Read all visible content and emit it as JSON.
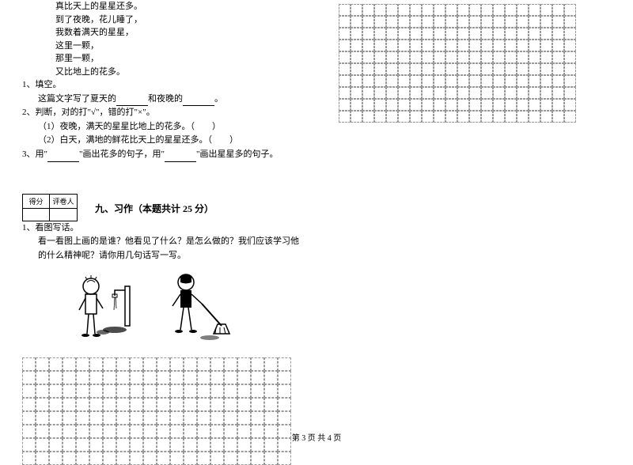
{
  "poem": {
    "line1": "真比天上的星星还多。",
    "line2": "到了夜晚，花儿睡了，",
    "line3": "我数着满天的星星，",
    "line4": "这里一颗，",
    "line5": "那里一颗，",
    "line6": "又比地上的花多。"
  },
  "q1": {
    "num": "1、填空。",
    "text_a": "这篇文字写了夏天的",
    "text_b": "和夜晚的",
    "text_c": "。"
  },
  "q2": {
    "num": "2、判断，对的打\"√\"，错的打\"×\"。",
    "sub1": "（1）夜晚，满天的星星比地上的花多。（　　）",
    "sub2": "（2）白天，满地的鲜花比天上的星星还多。（　　）"
  },
  "q3": {
    "num": "3、用\"",
    "text_a": "\"画出花多的句子，用\"",
    "text_b": "\"画出星星多的句子。"
  },
  "scorebox": {
    "score": "得分",
    "reviewer": "评卷人"
  },
  "section9": {
    "title": "九、习作（本题共计 25 分）"
  },
  "writing": {
    "num": "1、看图写话。",
    "prompt": "看一看图上画的是谁？他看见了什么？是怎么做的？我们应该学习他的什么精神呢？请你用几句话写一写。"
  },
  "footer": {
    "text": "第 3 页  共 4 页"
  },
  "styles": {
    "grid_color": "#999999",
    "text_color": "#000000",
    "bg_color": "#ffffff",
    "font_size_body": 11,
    "font_size_title": 12,
    "font_size_footer": 10
  }
}
